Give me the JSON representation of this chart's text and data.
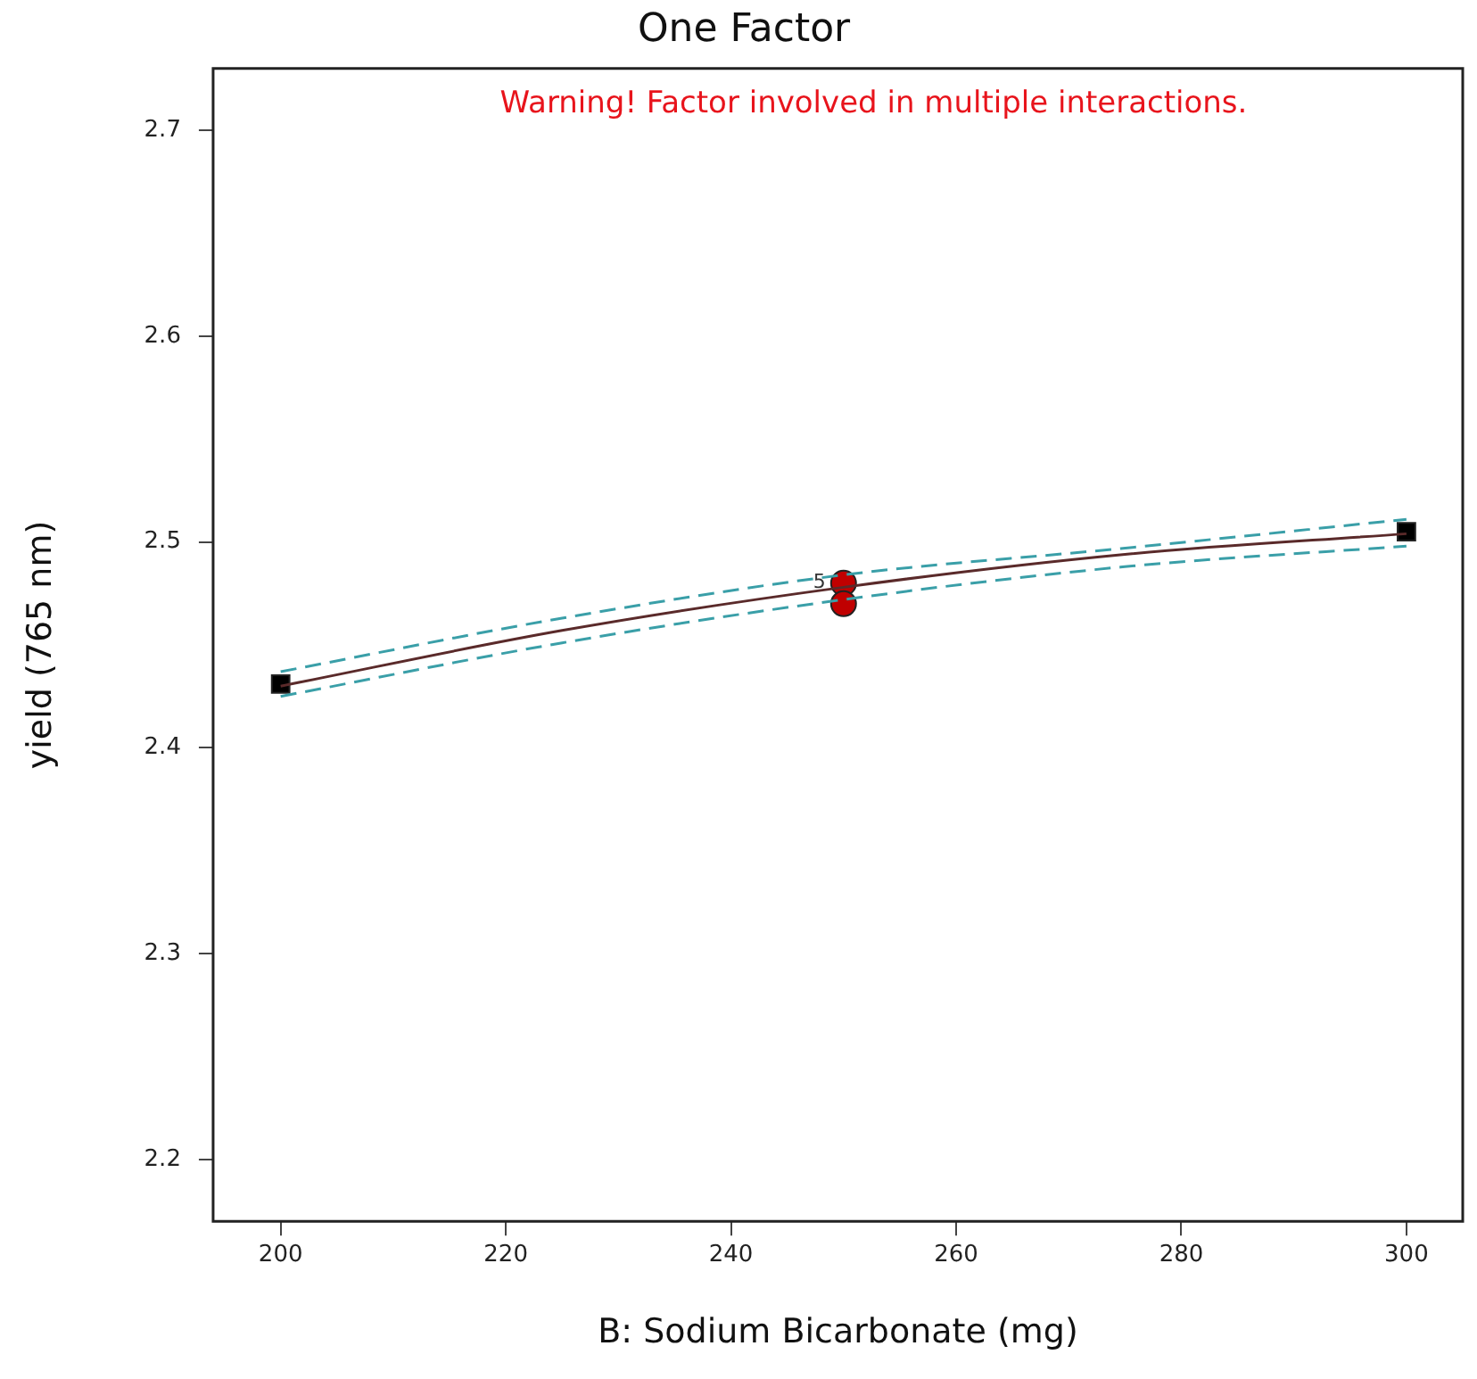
{
  "chart_data": {
    "type": "line",
    "title": "One Factor",
    "xlabel": "B: Sodium Bicarbonate (mg)",
    "ylabel": "yield (765 nm)",
    "annotations": [
      "Warning! Factor involved in multiple interactions.",
      {
        "text": "5",
        "x": 250,
        "y": 2.48
      }
    ],
    "xlim": [
      194,
      305
    ],
    "xticks": [
      200,
      220,
      240,
      260,
      280,
      300
    ],
    "ylim": [
      2.17,
      2.73
    ],
    "yticks": [
      2.2,
      2.3,
      2.4,
      2.5,
      2.6,
      2.7
    ],
    "grid": false,
    "legend": false,
    "series": [
      {
        "type": "line",
        "color": "#5a2a2a",
        "x": [
          200,
          225,
          250,
          275,
          300
        ],
        "values": [
          2.43,
          2.457,
          2.478,
          2.494,
          2.504
        ],
        "marker": "none",
        "line_style": "solid"
      },
      {
        "type": "line",
        "color": "#3a9fa8",
        "x": [
          200,
          225,
          250,
          275,
          300
        ],
        "values": [
          2.437,
          2.463,
          2.484,
          2.497,
          2.511
        ],
        "marker": "none",
        "line_style": "dashed"
      },
      {
        "type": "line",
        "color": "#3a9fa8",
        "x": [
          200,
          225,
          250,
          275,
          300
        ],
        "values": [
          2.425,
          2.451,
          2.472,
          2.488,
          2.498
        ],
        "marker": "none",
        "line_style": "dashed"
      },
      {
        "type": "scatter",
        "color": "#000000",
        "x": [
          200,
          300
        ],
        "values": [
          2.431,
          2.505
        ],
        "marker": "square"
      },
      {
        "type": "scatter",
        "color": "#c00000",
        "x": [
          250,
          250
        ],
        "values": [
          2.48,
          2.47
        ],
        "marker": "circle"
      }
    ]
  }
}
